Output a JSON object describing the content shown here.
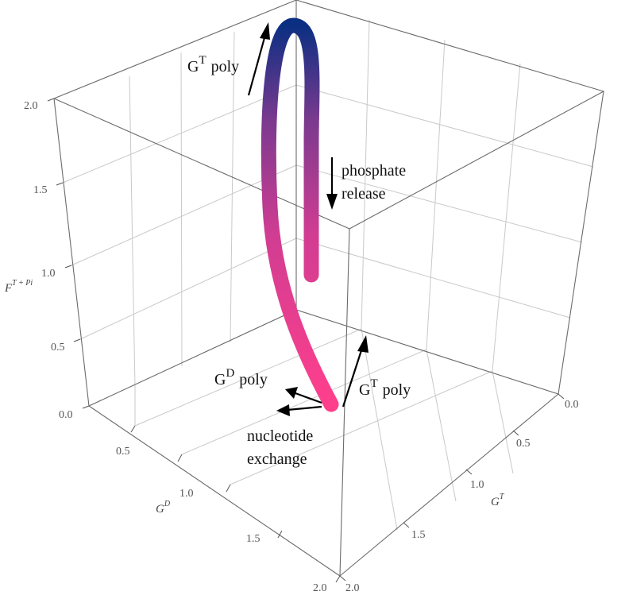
{
  "axes": {
    "z_label": "F",
    "z_label_sup": "T + Pi",
    "x_label": "G",
    "x_label_sup": "D",
    "y_label": "G",
    "y_label_sup": "T",
    "z_ticks": [
      "0.0",
      "0.5",
      "1.0",
      "1.5",
      "2.0"
    ],
    "x_ticks": [
      "0.5",
      "1.0",
      "1.5",
      "2.0"
    ],
    "y_ticks": [
      "0.0",
      "0.5",
      "1.0",
      "1.5",
      "2.0"
    ]
  },
  "annotations": {
    "gt_poly_top": {
      "base": "G",
      "sup": "T",
      "tail": "poly"
    },
    "phosphate": {
      "line1": "phosphate",
      "line2": "release"
    },
    "gd_poly": {
      "base": "G",
      "sup": "D",
      "tail": "poly"
    },
    "gt_poly_bottom": {
      "base": "G",
      "sup": "T",
      "tail": "poly"
    },
    "nucleotide": {
      "line1": "nucleotide",
      "line2": "exchange"
    }
  },
  "colors": {
    "trajectory_start": "#ff3f8c",
    "trajectory_end": "#0b2f82"
  }
}
